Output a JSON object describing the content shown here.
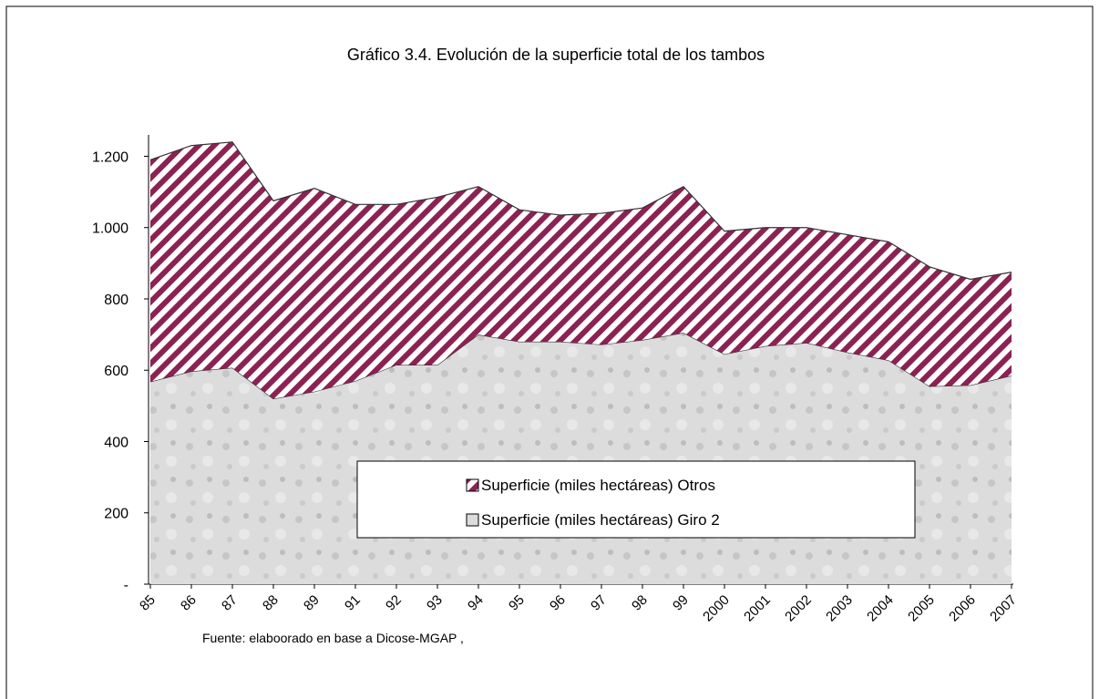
{
  "chart_data": {
    "type": "area",
    "title": "Gráfico 3.4.  Evolución de la superficie total de los tambos",
    "source": "Fuente: elaboorado en base a Dicose-MGAP ,",
    "stacked": true,
    "categories": [
      "85",
      "86",
      "87",
      "88",
      "89",
      "91",
      "92",
      "93",
      "94",
      "95",
      "96",
      "97",
      "98",
      "99",
      "2000",
      "2001",
      "2002",
      "2003",
      "2004",
      "2005",
      "2006",
      "2007"
    ],
    "series": [
      {
        "name": "Superficie (miles hectáreas) Giro 2",
        "color": "#d4d4d4",
        "values": [
          568,
          597,
          607,
          520,
          540,
          570,
          615,
          615,
          700,
          680,
          680,
          672,
          685,
          705,
          645,
          668,
          677,
          650,
          628,
          555,
          558,
          585
        ]
      },
      {
        "name": "Superficie (miles hectáreas) Otros",
        "color": "#8b2252",
        "values": [
          622,
          633,
          633,
          555,
          570,
          495,
          450,
          470,
          415,
          370,
          355,
          368,
          370,
          410,
          345,
          332,
          323,
          330,
          332,
          335,
          297,
          290
        ]
      }
    ],
    "ylim": [
      0,
      1260
    ],
    "yticks": [
      {
        "value": 0,
        "label": "-"
      },
      200,
      400,
      600,
      800,
      {
        "value": 1000,
        "label": "1.000"
      },
      {
        "value": 1200,
        "label": "1.200"
      }
    ],
    "legend": "bottom-center"
  }
}
